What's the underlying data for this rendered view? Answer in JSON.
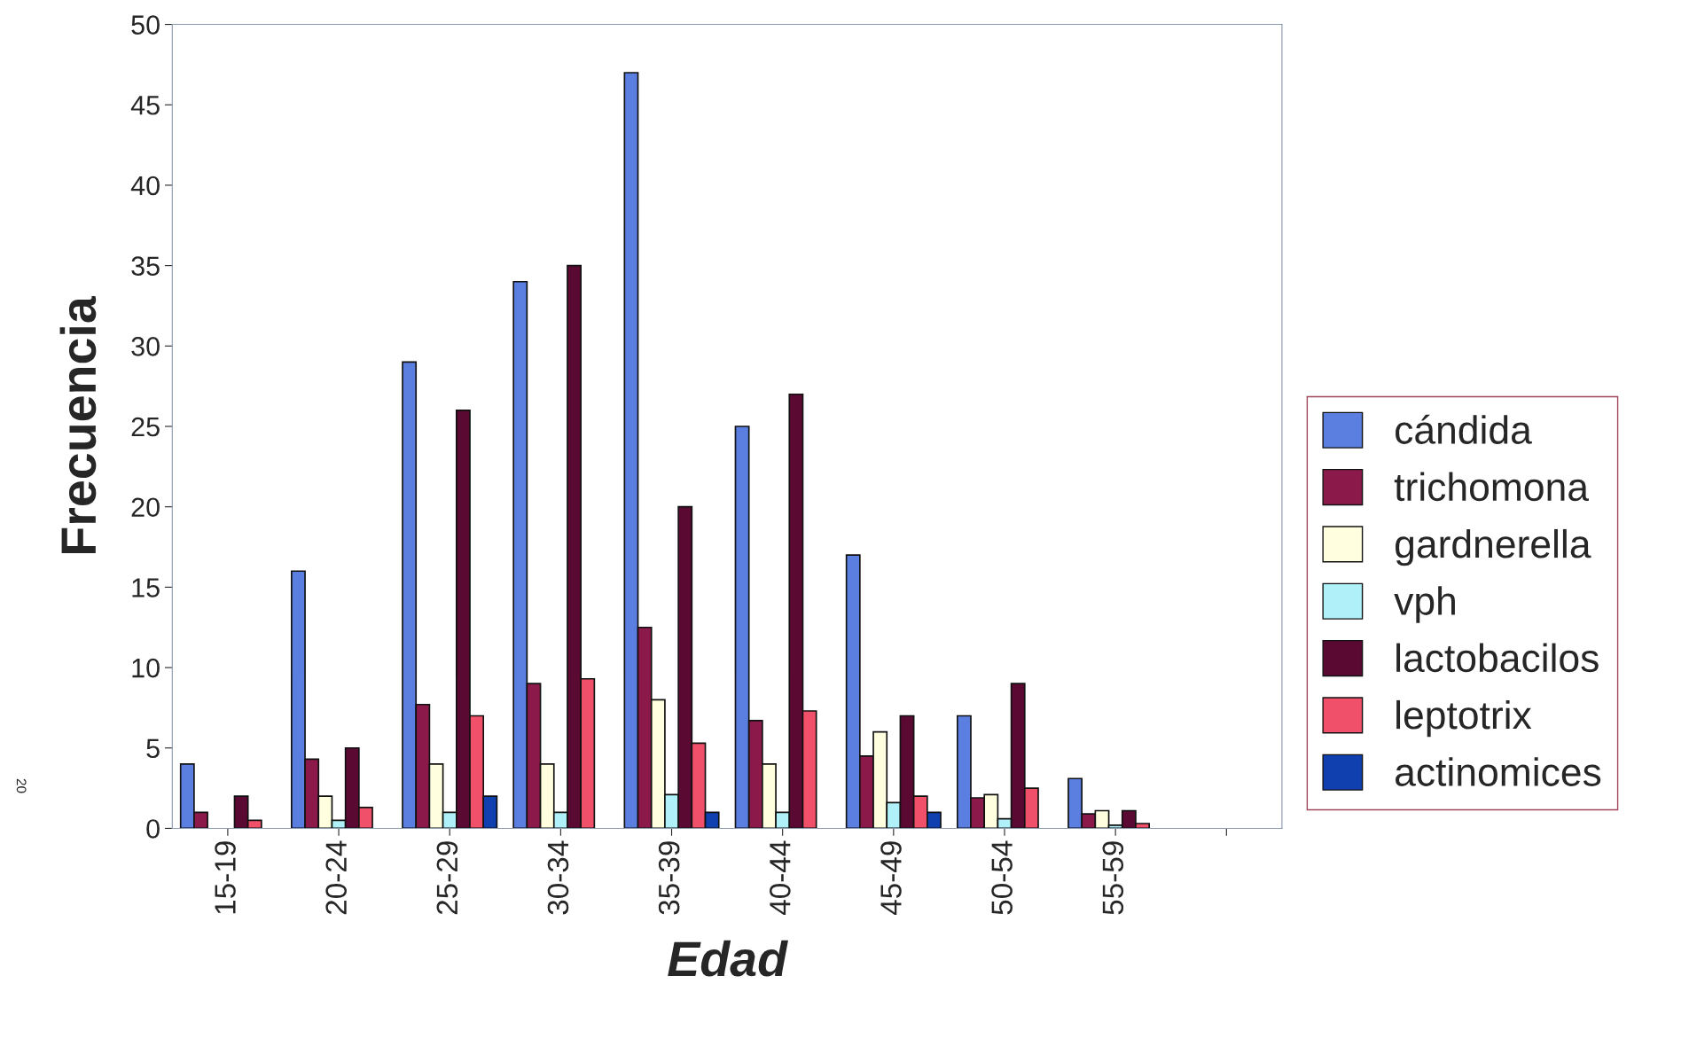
{
  "chart_data": {
    "type": "bar",
    "xlabel": "Edad",
    "ylabel": "Frecuencia",
    "categories": [
      "15-19",
      "20-24",
      "25-29",
      "30-34",
      "35-39",
      "40-44",
      "45-49",
      "50-54",
      "55-59",
      null
    ],
    "series": [
      {
        "name": "cándida",
        "color": "#5b7fe0",
        "values": [
          4,
          16,
          29,
          34,
          47,
          25,
          17,
          7,
          3.1,
          null
        ]
      },
      {
        "name": "trichomona",
        "color": "#8b1a4a",
        "values": [
          1,
          4.3,
          7.7,
          9,
          12.5,
          6.7,
          4.5,
          1.9,
          0.9,
          null
        ]
      },
      {
        "name": "gardnerella",
        "color": "#ffffe0",
        "values": [
          null,
          2,
          4,
          4,
          8,
          4,
          6,
          2.1,
          1.1,
          null
        ]
      },
      {
        "name": "vph",
        "color": "#b0f0f8",
        "values": [
          null,
          0.5,
          1,
          1,
          2.1,
          1,
          1.6,
          0.6,
          0.2,
          null
        ]
      },
      {
        "name": "lactobacilos",
        "color": "#5a0a32",
        "values": [
          2,
          5,
          26,
          35,
          20,
          27,
          7,
          9,
          1.1,
          null
        ]
      },
      {
        "name": "leptotrix",
        "color": "#f0506a",
        "values": [
          0.5,
          1.3,
          7,
          9.3,
          5.3,
          7.3,
          2,
          2.5,
          0.3,
          null
        ]
      },
      {
        "name": "actinomices",
        "color": "#1040b0",
        "values": [
          null,
          null,
          2,
          null,
          1,
          null,
          1,
          null,
          null,
          null
        ]
      }
    ],
    "ylim": [
      0,
      50
    ],
    "yticks": [
      0,
      5,
      10,
      15,
      20,
      25,
      30,
      35,
      40,
      45,
      50
    ],
    "grid": false,
    "legend": "right",
    "annotations": [
      "20"
    ]
  }
}
